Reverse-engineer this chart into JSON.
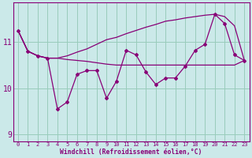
{
  "xlabel": "Windchill (Refroidissement éolien,°C)",
  "background_color": "#cbe9e9",
  "line_color": "#880077",
  "grid_color": "#99ccbb",
  "x_values": [
    0,
    1,
    2,
    3,
    4,
    5,
    6,
    7,
    8,
    9,
    10,
    11,
    12,
    13,
    14,
    15,
    16,
    17,
    18,
    19,
    20,
    21,
    22,
    23
  ],
  "y_main": [
    11.25,
    10.8,
    10.7,
    10.65,
    9.55,
    9.7,
    10.3,
    10.38,
    10.38,
    9.78,
    10.15,
    10.82,
    10.72,
    10.35,
    10.08,
    10.22,
    10.22,
    10.48,
    10.82,
    10.95,
    11.6,
    11.4,
    10.72,
    10.6
  ],
  "y_upper": [
    11.25,
    10.8,
    10.7,
    10.65,
    10.65,
    10.7,
    10.78,
    10.85,
    10.95,
    11.05,
    11.1,
    11.18,
    11.25,
    11.32,
    11.38,
    11.45,
    11.48,
    11.52,
    11.55,
    11.58,
    11.6,
    11.55,
    11.35,
    10.6
  ],
  "y_lower": [
    11.25,
    10.8,
    10.7,
    10.65,
    10.65,
    10.62,
    10.6,
    10.58,
    10.55,
    10.52,
    10.5,
    10.5,
    10.5,
    10.5,
    10.5,
    10.5,
    10.5,
    10.5,
    10.5,
    10.5,
    10.5,
    10.5,
    10.5,
    10.6
  ],
  "ylim": [
    8.85,
    11.85
  ],
  "yticks": [
    9,
    10,
    11
  ],
  "xlim": [
    -0.5,
    23.5
  ]
}
